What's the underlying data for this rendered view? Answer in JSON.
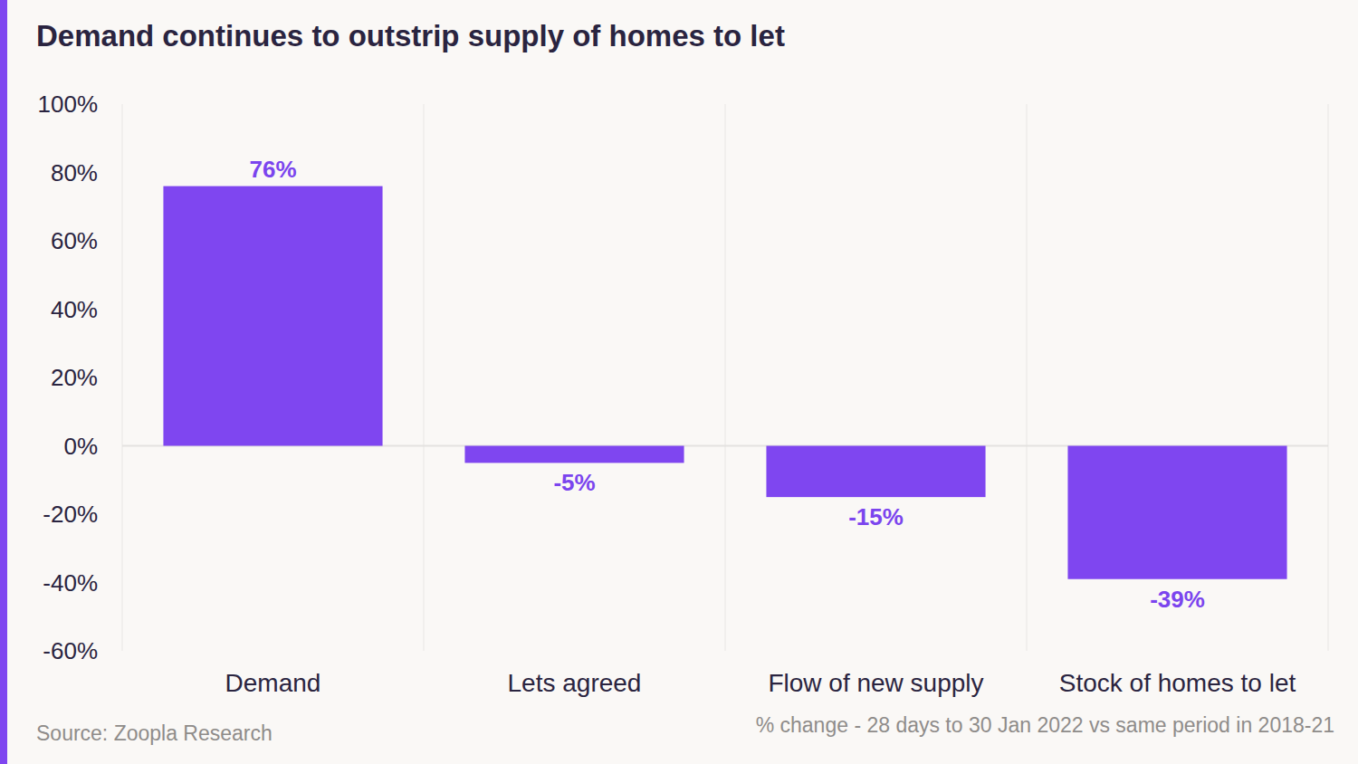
{
  "chart_data": {
    "type": "bar",
    "title": "Demand continues to outstrip supply of homes to let",
    "categories": [
      "Demand",
      "Lets agreed",
      "Flow of new supply",
      "Stock of homes to let"
    ],
    "values": [
      76,
      -5,
      -15,
      -39
    ],
    "value_labels": [
      "76%",
      "-5%",
      "-15%",
      "-39%"
    ],
    "data_labels": true,
    "color": "#7f46f0",
    "ylim": [
      -60,
      100
    ],
    "yticks": [
      {
        "value": -60,
        "label": "-60%"
      },
      {
        "value": -40,
        "label": "-40%"
      },
      {
        "value": -20,
        "label": "-20%"
      },
      {
        "value": 0,
        "label": "0%"
      },
      {
        "value": 20,
        "label": "20%"
      },
      {
        "value": 40,
        "label": "40%"
      },
      {
        "value": 60,
        "label": "60%"
      },
      {
        "value": 80,
        "label": "80%"
      },
      {
        "value": 100,
        "label": "100%"
      }
    ],
    "grid": true,
    "source": "Source: Zoopla Research",
    "note": "% change - 28 days to 30 Jan 2022 vs same period in 2018-21"
  }
}
